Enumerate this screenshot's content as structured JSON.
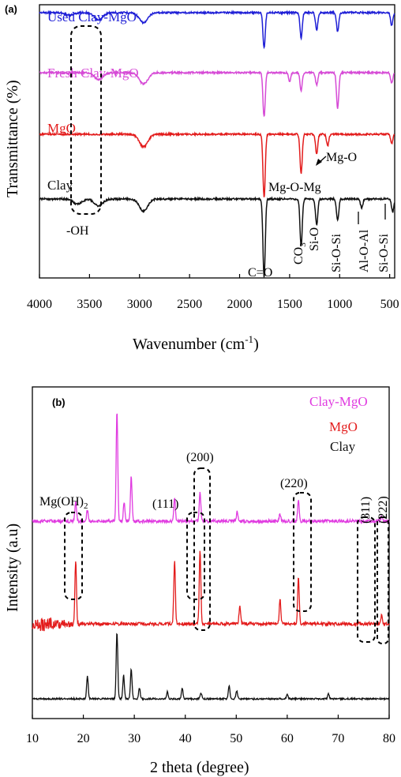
{
  "chart_data": [
    {
      "panel": "(a)",
      "type": "line",
      "xlabel": "Wavenumber (cm⁻¹)",
      "ylabel": "Transmittance (%)",
      "xlim": [
        4000,
        450
      ],
      "x_reversed": true,
      "x_ticks": [
        "4000",
        "3500",
        "3000",
        "2500",
        "2000",
        "1500",
        "1000",
        "500"
      ],
      "y_ticks_shown": false,
      "grid": false,
      "legend": "inline labels beside each curve",
      "series": [
        {
          "name": "Used Clay-MgO",
          "color": "#1f1fd6",
          "offset": 0,
          "bands": [
            {
              "x": 3700,
              "y": 0.04
            },
            {
              "x": 3410,
              "y": 0.12
            },
            {
              "x": 2960,
              "y": 0.16
            },
            {
              "x": 1755,
              "y": 0.55
            },
            {
              "x": 1385,
              "y": 0.4
            },
            {
              "x": 1230,
              "y": 0.28
            },
            {
              "x": 1020,
              "y": 0.3
            },
            {
              "x": 480,
              "y": 0.2
            }
          ]
        },
        {
          "name": "Fresh Clay-MgO",
          "color": "#d64bd6",
          "offset": 1,
          "bands": [
            {
              "x": 3410,
              "y": 0.1
            },
            {
              "x": 2960,
              "y": 0.16
            },
            {
              "x": 1755,
              "y": 0.62
            },
            {
              "x": 1500,
              "y": 0.12
            },
            {
              "x": 1385,
              "y": 0.25
            },
            {
              "x": 1230,
              "y": 0.18
            },
            {
              "x": 1020,
              "y": 0.5
            },
            {
              "x": 480,
              "y": 0.15
            }
          ]
        },
        {
          "name": "MgO",
          "color": "#e31c1c",
          "offset": 2,
          "bands": [
            {
              "x": 2960,
              "y": 0.16
            },
            {
              "x": 1755,
              "y": 0.8
            },
            {
              "x": 1385,
              "y": 0.5
            },
            {
              "x": 1230,
              "y": 0.25
            },
            {
              "x": 1120,
              "y": 0.15
            },
            {
              "x": 480,
              "y": 0.12
            }
          ]
        },
        {
          "name": "Clay",
          "color": "#111111",
          "offset": 3,
          "bands": [
            {
              "x": 3620,
              "y": 0.06
            },
            {
              "x": 3410,
              "y": 0.08
            },
            {
              "x": 2960,
              "y": 0.14
            },
            {
              "x": 1755,
              "y": 0.9
            },
            {
              "x": 1385,
              "y": 0.55
            },
            {
              "x": 1230,
              "y": 0.3
            },
            {
              "x": 1020,
              "y": 0.25
            },
            {
              "x": 780,
              "y": 0.1
            },
            {
              "x": 470,
              "y": 0.15
            }
          ]
        }
      ],
      "annotations": [
        "-OH",
        "C=O",
        "CO3",
        "Si-O",
        "Si-O-Si",
        "Mg-O-Mg",
        "Mg-O",
        "Al-O-Al",
        "Si-O-Si"
      ]
    },
    {
      "panel": "(b)",
      "type": "line",
      "xlabel": "2 theta (degree)",
      "ylabel": "Intensity (a.u)",
      "xlim": [
        10,
        80
      ],
      "x_ticks": [
        "10",
        "20",
        "30",
        "40",
        "50",
        "60",
        "70",
        "80"
      ],
      "y_ticks_shown": false,
      "grid": false,
      "legend": "top-right text labels",
      "series": [
        {
          "name": "Clay-MgO",
          "color": "#e03be0",
          "offset": 0,
          "peaks": [
            {
              "x": 18.5,
              "h": 25
            },
            {
              "x": 20.8,
              "h": 14
            },
            {
              "x": 26.6,
              "h": 140
            },
            {
              "x": 28.0,
              "h": 24
            },
            {
              "x": 29.4,
              "h": 57
            },
            {
              "x": 37.9,
              "h": 30
            },
            {
              "x": 42.9,
              "h": 38
            },
            {
              "x": 50.2,
              "h": 12
            },
            {
              "x": 58.6,
              "h": 9
            },
            {
              "x": 62.2,
              "h": 26
            },
            {
              "x": 78.5,
              "h": 6
            }
          ]
        },
        {
          "name": "MgO",
          "color": "#e31c1c",
          "offset": 1,
          "peaks": [
            {
              "x": 18.5,
              "h": 80
            },
            {
              "x": 37.9,
              "h": 80
            },
            {
              "x": 42.9,
              "h": 95
            },
            {
              "x": 50.7,
              "h": 22
            },
            {
              "x": 58.6,
              "h": 30
            },
            {
              "x": 62.2,
              "h": 60
            },
            {
              "x": 78.5,
              "h": 10
            }
          ]
        },
        {
          "name": "Clay",
          "color": "#111111",
          "offset": 2,
          "peaks": [
            {
              "x": 20.8,
              "h": 28
            },
            {
              "x": 26.6,
              "h": 85
            },
            {
              "x": 27.9,
              "h": 30
            },
            {
              "x": 29.4,
              "h": 38
            },
            {
              "x": 31.0,
              "h": 14
            },
            {
              "x": 36.5,
              "h": 9
            },
            {
              "x": 39.4,
              "h": 14
            },
            {
              "x": 43.1,
              "h": 7
            },
            {
              "x": 48.6,
              "h": 16
            },
            {
              "x": 50.1,
              "h": 10
            },
            {
              "x": 60.0,
              "h": 6
            },
            {
              "x": 68.1,
              "h": 6
            }
          ]
        }
      ],
      "annotations": [
        "Mg(OH)2",
        "(111)",
        "(200)",
        "(220)",
        "(311)",
        "(222)"
      ]
    }
  ],
  "labels": {
    "panel_a": "(a)",
    "panel_b": "(b)",
    "a_xlabel_main": "Wavenumber (cm",
    "a_xlabel_sup": "-1",
    "a_xlabel_end": ")",
    "a_ylabel": "Transmittance (%)",
    "b_xlabel": "2 theta (degree)",
    "b_ylabel": "Intensity (a.u)",
    "a_series": [
      "Used Clay-MgO",
      "Fresh Clay-MgO",
      "MgO",
      "Clay"
    ],
    "b_series": [
      "Clay-MgO",
      "MgO",
      "Clay"
    ],
    "a_ann": {
      "oh": "-OH",
      "co": "C=O",
      "co3_main": "CO",
      "co3_sub": "3",
      "sio": "Si-O",
      "siosi": "Si-O-Si",
      "mgomg": "Mg-O-Mg",
      "mgo": "Mg-O",
      "aloal": "Al-O-Al",
      "siosi2": "Si-O-Si"
    },
    "b_ann": {
      "mgoh_main": "Mg(OH)",
      "mgoh_sub": "2",
      "p111": "(111)",
      "p200": "(200)",
      "p220": "(220)",
      "p311": "(311)",
      "p222": "(222)"
    }
  }
}
